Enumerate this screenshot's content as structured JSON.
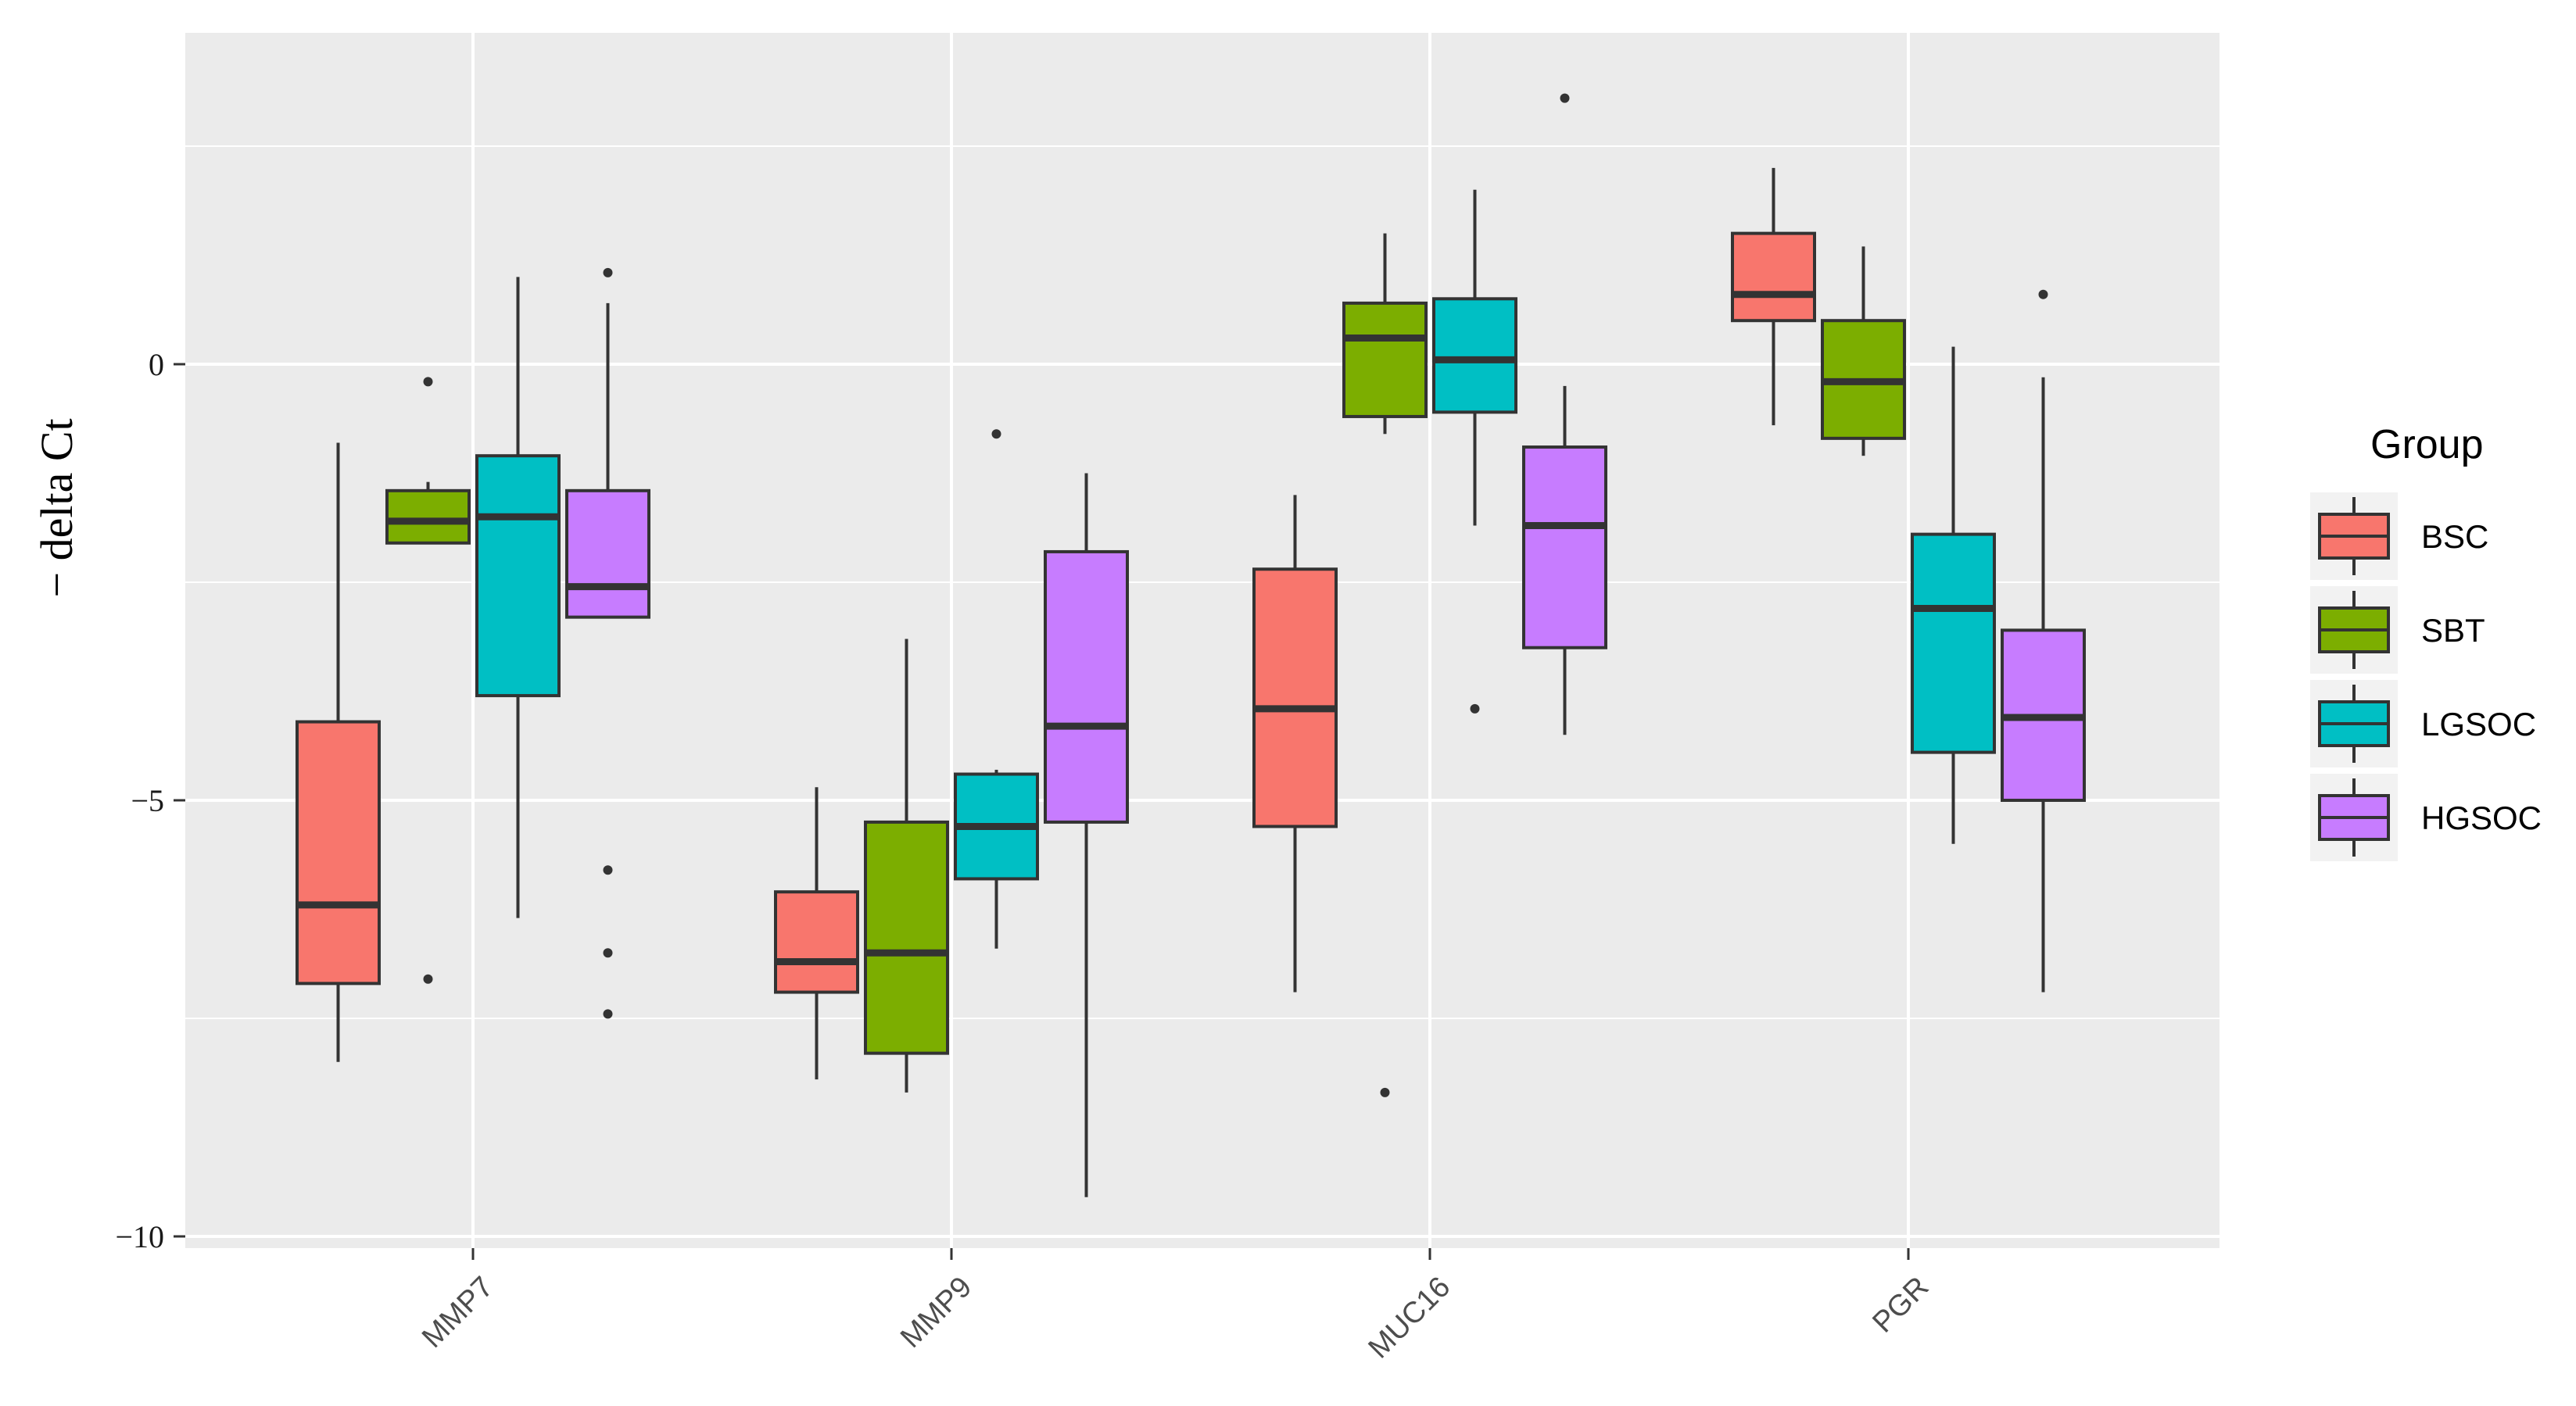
{
  "chart_data": {
    "type": "box",
    "title": "",
    "xlabel": "",
    "ylabel": "− delta Ct",
    "ylim": [
      -10.2,
      3.8
    ],
    "yticks": [
      0,
      -5,
      -10
    ],
    "ytick_labels": [
      "0",
      "−5",
      "−10"
    ],
    "categories": [
      "MMP7",
      "MMP9",
      "MUC16",
      "PGR"
    ],
    "grid": true,
    "legend": {
      "title": "Group",
      "position": "right"
    },
    "series": [
      {
        "name": "BSC",
        "color": "#F8766D",
        "boxes": [
          {
            "category": "MMP7",
            "min": -8.0,
            "q1": -7.1,
            "median": -6.2,
            "q3": -4.1,
            "max": -0.9,
            "outliers": []
          },
          {
            "category": "MMP9",
            "min": -8.2,
            "q1": -7.2,
            "median": -6.85,
            "q3": -6.05,
            "max": -4.85,
            "outliers": []
          },
          {
            "category": "MUC16",
            "min": -7.2,
            "q1": -5.3,
            "median": -3.95,
            "q3": -2.35,
            "max": -1.5,
            "outliers": []
          },
          {
            "category": "PGR",
            "min": -0.7,
            "q1": 0.5,
            "median": 0.8,
            "q3": 1.5,
            "max": 2.25,
            "outliers": []
          }
        ]
      },
      {
        "name": "SBT",
        "color": "#7CAE00",
        "boxes": [
          {
            "category": "MMP7",
            "min": -2.05,
            "q1": -2.05,
            "median": -1.8,
            "q3": -1.45,
            "max": -1.35,
            "outliers": [
              -0.2,
              -7.05
            ]
          },
          {
            "category": "MMP9",
            "min": -8.35,
            "q1": -7.9,
            "median": -6.75,
            "q3": -5.25,
            "max": -3.15,
            "outliers": []
          },
          {
            "category": "MUC16",
            "min": -0.8,
            "q1": -0.6,
            "median": 0.3,
            "q3": 0.7,
            "max": 1.5,
            "outliers": [
              -8.35
            ]
          },
          {
            "category": "PGR",
            "min": -1.05,
            "q1": -0.85,
            "median": -0.2,
            "q3": 0.5,
            "max": 1.35,
            "outliers": []
          }
        ]
      },
      {
        "name": "LGSOC",
        "color": "#00BFC4",
        "boxes": [
          {
            "category": "MMP7",
            "min": -6.35,
            "q1": -3.8,
            "median": -1.75,
            "q3": -1.05,
            "max": 1.0,
            "outliers": []
          },
          {
            "category": "MMP9",
            "min": -6.7,
            "q1": -5.9,
            "median": -5.3,
            "q3": -4.7,
            "max": -4.65,
            "outliers": [
              -0.8
            ]
          },
          {
            "category": "MUC16",
            "min": -1.85,
            "q1": -0.55,
            "median": 0.05,
            "q3": 0.75,
            "max": 2.0,
            "outliers": [
              -3.95
            ]
          },
          {
            "category": "PGR",
            "min": -5.5,
            "q1": -4.45,
            "median": -2.8,
            "q3": -1.95,
            "max": 0.2,
            "outliers": []
          }
        ]
      },
      {
        "name": "HGSOC",
        "color": "#C77CFF",
        "boxes": [
          {
            "category": "MMP7",
            "min": -2.9,
            "q1": -2.9,
            "median": -2.55,
            "q3": -1.45,
            "max": 0.7,
            "outliers": [
              1.05,
              -5.8,
              -6.75,
              -7.45
            ]
          },
          {
            "category": "MMP9",
            "min": -9.55,
            "q1": -5.25,
            "median": -4.15,
            "q3": -2.15,
            "max": -1.25,
            "outliers": []
          },
          {
            "category": "MUC16",
            "min": -4.25,
            "q1": -3.25,
            "median": -1.85,
            "q3": -0.95,
            "max": -0.25,
            "outliers": [
              3.05
            ]
          },
          {
            "category": "PGR",
            "min": -7.2,
            "q1": -5.0,
            "median": -4.05,
            "q3": -3.05,
            "max": -0.15,
            "outliers": [
              0.8
            ]
          }
        ]
      }
    ]
  }
}
